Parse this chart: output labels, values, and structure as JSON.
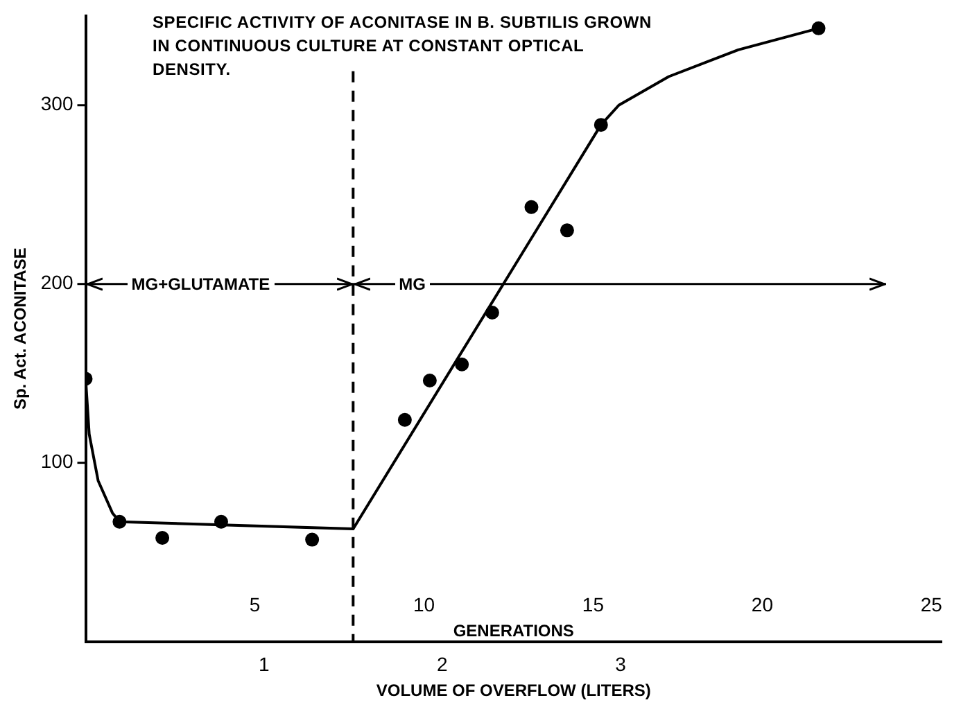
{
  "chart_data": {
    "type": "scatter",
    "title": "SPECIFIC ACTIVITY OF ACONITASE IN B. SUBTILIS GROWN IN CONTINUOUS CULTURE AT CONSTANT OPTICAL DENSITY.",
    "xlabel": "VOLUME OF OVERFLOW (LITERS)",
    "ylabel": "Sp. Act. ACONITASE",
    "x2label": "GENERATIONS",
    "xlim": [
      0,
      4.8
    ],
    "xticks": [
      1,
      2,
      3
    ],
    "ylim": [
      0,
      350
    ],
    "yticks": [
      100,
      200,
      300
    ],
    "x2lim": [
      0,
      25.3
    ],
    "x2ticks": [
      5,
      10,
      15,
      20,
      25
    ],
    "series": [
      {
        "type": "scatter",
        "color": "#000000",
        "marker": "circle",
        "x": [
          0,
          0.19,
          0.43,
          0.76,
          1.27,
          1.79,
          1.93,
          2.11,
          2.28,
          2.5,
          2.7,
          2.89,
          4.11
        ],
        "values": [
          147,
          67,
          58,
          67,
          57,
          124,
          146,
          155,
          184,
          243,
          230,
          289,
          343
        ]
      },
      {
        "type": "line",
        "color": "#000000",
        "marker": "none",
        "line_style": "solid",
        "x": [
          0,
          0.02,
          0.07,
          0.15,
          0.19,
          1.5,
          2.89,
          2.99,
          3.27,
          3.66,
          4.11
        ],
        "values": [
          147,
          116,
          90,
          72,
          67,
          63,
          289,
          300,
          316,
          331,
          343
        ]
      }
    ],
    "ref_lines": [
      {
        "axis": "x",
        "value": 1.5,
        "line_style": "dashed",
        "color": "#000000"
      },
      {
        "axis": "y",
        "value": 200,
        "line_style": "solid",
        "color": "#000000"
      }
    ],
    "annotations": [
      "MG+GLUTAMATE",
      "MG"
    ],
    "grid": false,
    "legend": false
  }
}
